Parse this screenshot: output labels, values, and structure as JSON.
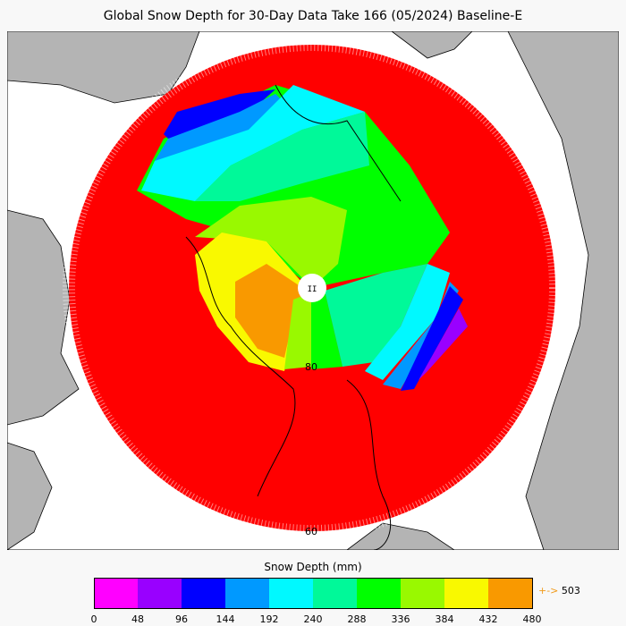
{
  "title": "Global Snow Depth for 30-Day Data Take 166 (05/2024) Baseline-E",
  "map": {
    "lat_labels": [
      "80",
      "60"
    ],
    "pole_marker": "II",
    "colors": {
      "land": "#b4b4b4",
      "ocean": "#ffffff",
      "nodata": "#ff0000"
    }
  },
  "colorbar": {
    "label": "Snow Depth (mm)",
    "ticks": [
      "0",
      "48",
      "96",
      "144",
      "192",
      "240",
      "288",
      "336",
      "384",
      "432",
      "480"
    ],
    "colors": [
      "#ff00ff",
      "#9900ff",
      "#0000ff",
      "#0099ff",
      "#00f9ff",
      "#00f999",
      "#00ff00",
      "#99f900",
      "#f9f900",
      "#f99900"
    ],
    "overflow_arrow": "+->",
    "overflow_value": "503"
  }
}
